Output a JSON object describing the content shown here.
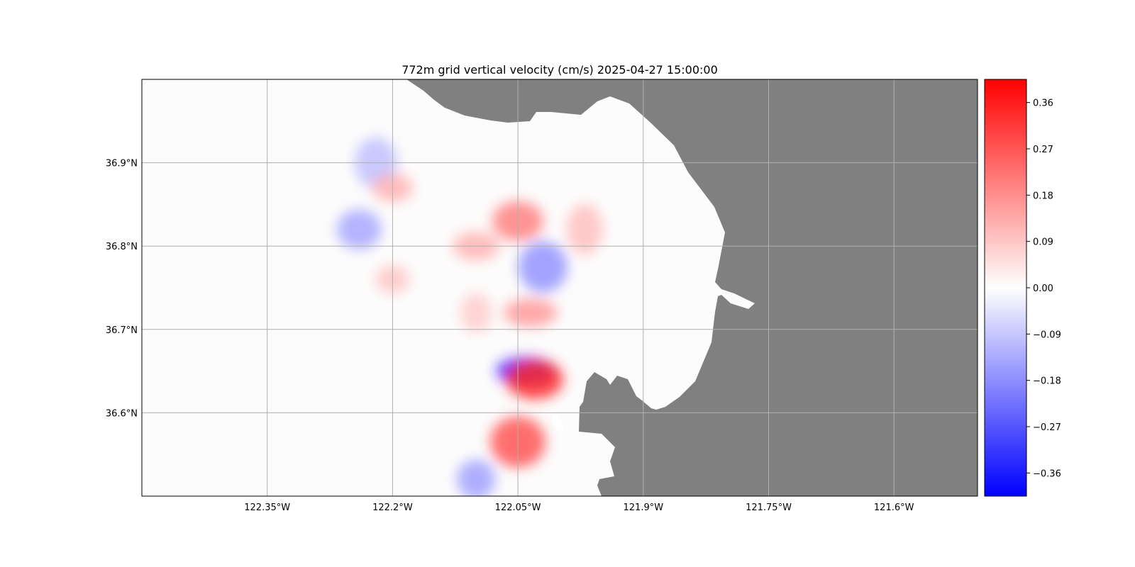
{
  "title": "772m grid vertical velocity (cm/s) 2025-04-27 15:00:00",
  "map": {
    "lon_range": [
      -122.5,
      -121.5
    ],
    "lat_range": [
      36.5,
      37.0
    ],
    "lon_ticks": [
      {
        "value": -122.35,
        "label": "122.35°W"
      },
      {
        "value": -122.2,
        "label": "122.2°W"
      },
      {
        "value": -122.05,
        "label": "122.05°W"
      },
      {
        "value": -121.9,
        "label": "121.9°W"
      },
      {
        "value": -121.75,
        "label": "121.75°W"
      },
      {
        "value": -121.6,
        "label": "121.6°W"
      }
    ],
    "lat_ticks": [
      {
        "value": 36.9,
        "label": "36.9°N"
      },
      {
        "value": 36.8,
        "label": "36.8°N"
      },
      {
        "value": 36.7,
        "label": "36.7°N"
      },
      {
        "value": 36.6,
        "label": "36.6°N"
      }
    ],
    "grid": true,
    "land_color": "#808080",
    "field": "vertical velocity",
    "units": "cm/s"
  },
  "colorbar": {
    "cmap": "bwr",
    "vmin": -0.405,
    "vmax": 0.405,
    "ticks": [
      {
        "value": 0.36,
        "label": "0.36"
      },
      {
        "value": 0.27,
        "label": "0.27"
      },
      {
        "value": 0.18,
        "label": "0.18"
      },
      {
        "value": 0.09,
        "label": "0.09"
      },
      {
        "value": 0.0,
        "label": "0.00"
      },
      {
        "value": -0.09,
        "label": "−0.09"
      },
      {
        "value": -0.18,
        "label": "−0.18"
      },
      {
        "value": -0.27,
        "label": "−0.27"
      },
      {
        "value": -0.36,
        "label": "−0.36"
      }
    ]
  },
  "field_features": [
    {
      "lon": -122.04,
      "lat": 36.65,
      "value": -0.36
    },
    {
      "lon": -122.03,
      "lat": 36.64,
      "value": 0.34
    },
    {
      "lon": -122.05,
      "lat": 36.565,
      "value": 0.27
    },
    {
      "lon": -122.035,
      "lat": 36.72,
      "value": 0.16
    },
    {
      "lon": -122.05,
      "lat": 36.83,
      "value": 0.2
    },
    {
      "lon": -122.02,
      "lat": 36.775,
      "value": -0.17
    },
    {
      "lon": -122.1,
      "lat": 36.8,
      "value": 0.12
    },
    {
      "lon": -122.24,
      "lat": 36.82,
      "value": -0.14
    },
    {
      "lon": -122.22,
      "lat": 36.9,
      "value": -0.1
    },
    {
      "lon": -122.2,
      "lat": 36.87,
      "value": 0.12
    },
    {
      "lon": -122.1,
      "lat": 36.52,
      "value": -0.15
    },
    {
      "lon": -121.97,
      "lat": 36.82,
      "value": 0.1
    },
    {
      "lon": -122.2,
      "lat": 36.76,
      "value": 0.09
    },
    {
      "lon": -122.1,
      "lat": 36.72,
      "value": 0.08
    }
  ]
}
